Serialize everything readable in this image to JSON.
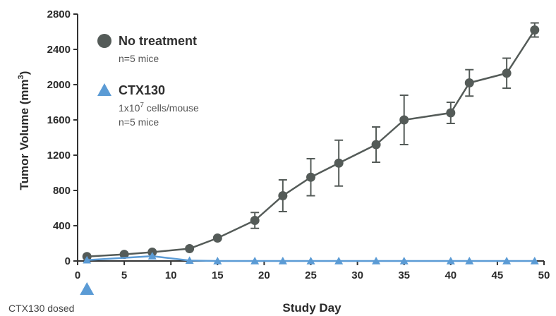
{
  "chart_data": {
    "type": "line",
    "title": "",
    "xlabel": "Study Day",
    "ylabel": "Tumor Volume (mm",
    "ylabel_superscript": "3",
    "ylabel_suffix": ")",
    "xlim": [
      0,
      50
    ],
    "ylim": [
      0,
      2800
    ],
    "xticks": [
      0,
      5,
      10,
      15,
      20,
      25,
      30,
      35,
      40,
      45,
      50
    ],
    "yticks": [
      0,
      400,
      800,
      1200,
      1600,
      2000,
      2400,
      2800
    ],
    "grid": false,
    "legend_position": "top-left",
    "series": [
      {
        "name": "No treatment",
        "note_lines": [
          {
            "text": "n=5 mice"
          }
        ],
        "color": "#545b58",
        "marker": "circle",
        "x": [
          1,
          5,
          8,
          12,
          15,
          19,
          22,
          25,
          28,
          32,
          35,
          40,
          42,
          46,
          49
        ],
        "y": [
          50,
          75,
          100,
          140,
          260,
          460,
          740,
          950,
          1110,
          1320,
          1600,
          1680,
          2020,
          2130,
          2620
        ],
        "err": [
          0,
          0,
          0,
          0,
          0,
          90,
          180,
          210,
          260,
          200,
          280,
          120,
          150,
          170,
          80
        ]
      },
      {
        "name": "CTX130",
        "note_lines": [
          {
            "text": "1x10",
            "sup": "7",
            "rest": " cells/mouse"
          },
          {
            "text": "n=5 mice"
          }
        ],
        "color": "#5b9bd5",
        "marker": "triangle",
        "x": [
          1,
          8,
          12,
          15,
          19,
          22,
          25,
          28,
          32,
          35,
          40,
          42,
          46,
          49
        ],
        "y": [
          10,
          55,
          5,
          0,
          0,
          0,
          0,
          0,
          0,
          0,
          0,
          0,
          0,
          0
        ],
        "err": [
          0,
          0,
          0,
          0,
          0,
          0,
          0,
          0,
          0,
          0,
          0,
          0,
          0,
          0
        ]
      }
    ],
    "annotations": [
      {
        "text": "CTX130 dosed",
        "x": 1,
        "marker": "triangle",
        "color": "#5b9bd5"
      }
    ]
  }
}
